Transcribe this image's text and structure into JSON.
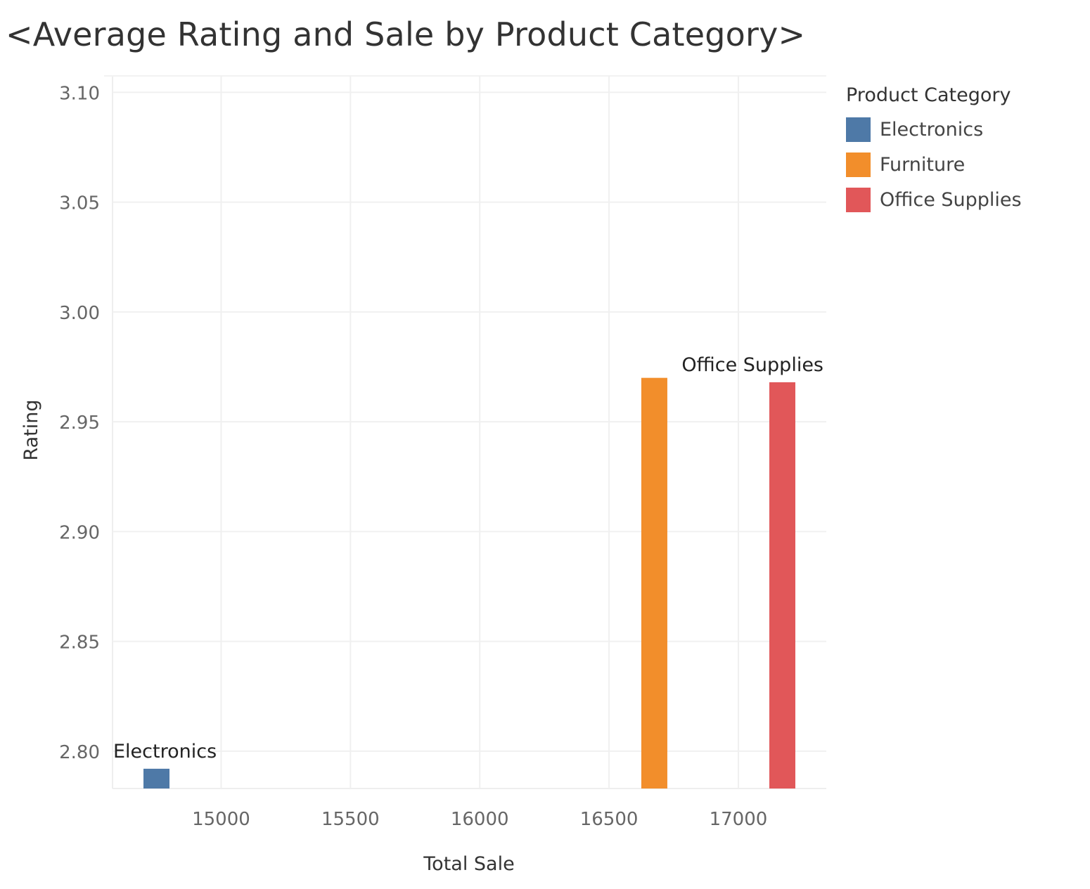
{
  "chart_data": {
    "type": "bar",
    "title": "<Average Rating and Sale by Product Category>",
    "xlabel": "Total Sale",
    "ylabel": "Rating",
    "xlim": [
      14580,
      17340
    ],
    "ylim": [
      2.783,
      3.1075
    ],
    "x_ticks": [
      15000,
      15500,
      16000,
      16500,
      17000
    ],
    "y_ticks": [
      "2.80",
      "2.85",
      "2.90",
      "2.95",
      "3.00",
      "3.05",
      "3.10"
    ],
    "grid": true,
    "legend": {
      "title": "Product Category",
      "placement": "right"
    },
    "series": [
      {
        "name": "Electronics",
        "x": 14750,
        "value": 2.792,
        "color": "#4e79a7",
        "label": "Electronics"
      },
      {
        "name": "Furniture",
        "x": 16675,
        "value": 2.97,
        "color": "#f28e2b",
        "label": ""
      },
      {
        "name": "Office Supplies",
        "x": 17170,
        "value": 2.968,
        "color": "#e15759",
        "label": "Office Supplies"
      }
    ]
  }
}
